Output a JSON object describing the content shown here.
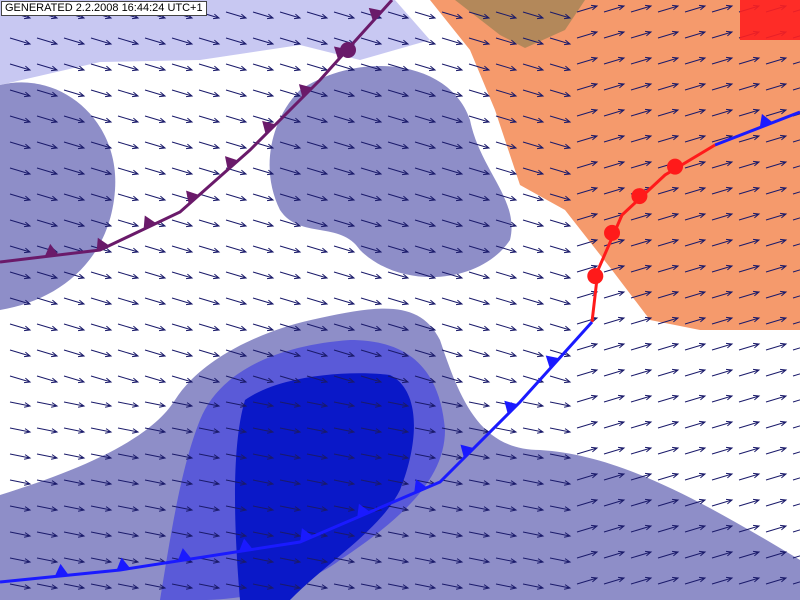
{
  "header": {
    "timestamp": "GENERATED 2.2.2008 16:44:24 UTC+1"
  }
}
